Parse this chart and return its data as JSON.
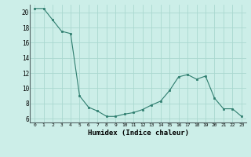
{
  "x": [
    0,
    1,
    2,
    3,
    4,
    5,
    6,
    7,
    8,
    9,
    10,
    11,
    12,
    13,
    14,
    15,
    16,
    17,
    18,
    19,
    20,
    21,
    22,
    23
  ],
  "y": [
    20.5,
    20.5,
    19.0,
    17.5,
    17.2,
    9.0,
    7.5,
    7.0,
    6.3,
    6.3,
    6.6,
    6.8,
    7.2,
    7.8,
    8.3,
    9.7,
    11.5,
    11.8,
    11.2,
    11.6,
    8.7,
    7.3,
    7.3,
    6.3
  ],
  "xlabel": "Humidex (Indice chaleur)",
  "ylim": [
    5.5,
    21.0
  ],
  "yticks": [
    6,
    8,
    10,
    12,
    14,
    16,
    18,
    20
  ],
  "xticks": [
    0,
    1,
    2,
    3,
    4,
    5,
    6,
    7,
    8,
    9,
    10,
    11,
    12,
    13,
    14,
    15,
    16,
    17,
    18,
    19,
    20,
    21,
    22,
    23
  ],
  "line_color": "#2e7d6e",
  "marker_color": "#2e7d6e",
  "bg_color": "#cceee8",
  "grid_color": "#aad8d0"
}
